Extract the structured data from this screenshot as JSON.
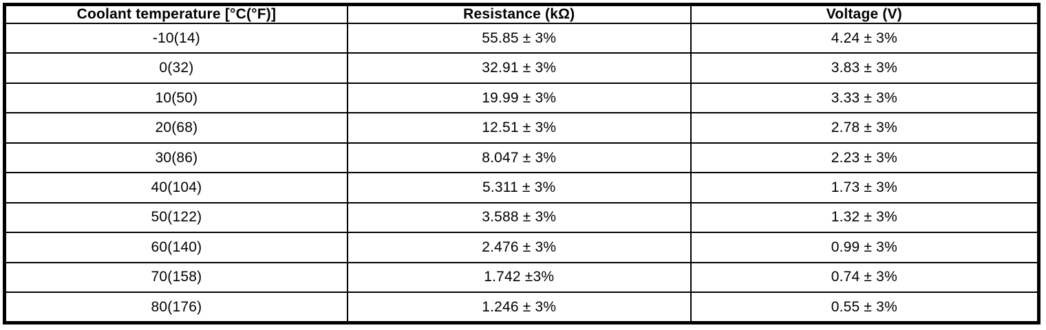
{
  "accent_colors": {
    "border": "#000000",
    "text": "#000000",
    "background": "#ffffff"
  },
  "table": {
    "headers": [
      "Coolant temperature [°C(°F)]",
      "Resistance (kΩ)",
      "Voltage (V)"
    ],
    "rows": [
      {
        "temperature": "-10(14)",
        "resistance": "55.85 ± 3%",
        "voltage": "4.24 ± 3%"
      },
      {
        "temperature": "0(32)",
        "resistance": "32.91 ± 3%",
        "voltage": "3.83 ± 3%"
      },
      {
        "temperature": "10(50)",
        "resistance": "19.99 ± 3%",
        "voltage": "3.33 ± 3%"
      },
      {
        "temperature": "20(68)",
        "resistance": "12.51 ± 3%",
        "voltage": "2.78 ± 3%"
      },
      {
        "temperature": "30(86)",
        "resistance": "8.047 ± 3%",
        "voltage": "2.23 ± 3%"
      },
      {
        "temperature": "40(104)",
        "resistance": "5.311 ± 3%",
        "voltage": "1.73 ± 3%"
      },
      {
        "temperature": "50(122)",
        "resistance": "3.588 ± 3%",
        "voltage": "1.32 ± 3%"
      },
      {
        "temperature": "60(140)",
        "resistance": "2.476 ± 3%",
        "voltage": "0.99 ± 3%"
      },
      {
        "temperature": "70(158)",
        "resistance": "1.742 ±3%",
        "voltage": "0.74 ± 3%"
      },
      {
        "temperature": "80(176)",
        "resistance": "1.246 ± 3%",
        "voltage": "0.55 ± 3%"
      }
    ]
  }
}
